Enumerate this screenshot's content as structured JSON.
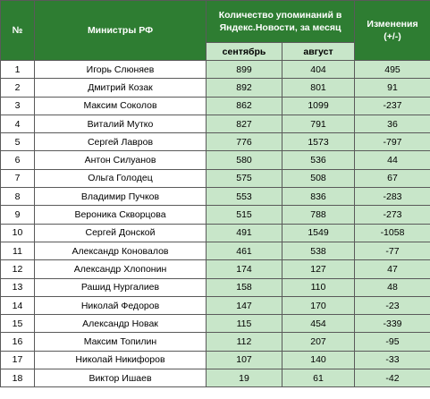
{
  "table": {
    "headers": {
      "num": "№",
      "minister": "Министры РФ",
      "mentions": "Количество упоминаний в Яндекс.Новости, за месяц",
      "september": "сентябрь",
      "august": "август",
      "change": "Изменения (+/-)"
    },
    "rows": [
      {
        "num": "1",
        "name": "Игорь Слюняев",
        "sep": "899",
        "aug": "404",
        "change": "495"
      },
      {
        "num": "2",
        "name": "Дмитрий Козак",
        "sep": "892",
        "aug": "801",
        "change": "91"
      },
      {
        "num": "3",
        "name": "Максим Соколов",
        "sep": "862",
        "aug": "1099",
        "change": "-237"
      },
      {
        "num": "4",
        "name": "Виталий Мутко",
        "sep": "827",
        "aug": "791",
        "change": "36"
      },
      {
        "num": "5",
        "name": "Сергей Лавров",
        "sep": "776",
        "aug": "1573",
        "change": "-797"
      },
      {
        "num": "6",
        "name": "Антон Силуанов",
        "sep": "580",
        "aug": "536",
        "change": "44"
      },
      {
        "num": "7",
        "name": "Ольга Голодец",
        "sep": "575",
        "aug": "508",
        "change": "67"
      },
      {
        "num": "8",
        "name": "Владимир Пучков",
        "sep": "553",
        "aug": "836",
        "change": "-283"
      },
      {
        "num": "9",
        "name": "Вероника Скворцова",
        "sep": "515",
        "aug": "788",
        "change": "-273"
      },
      {
        "num": "10",
        "name": "Сергей Донской",
        "sep": "491",
        "aug": "1549",
        "change": "-1058"
      },
      {
        "num": "11",
        "name": "Александр Коновалов",
        "sep": "461",
        "aug": "538",
        "change": "-77"
      },
      {
        "num": "12",
        "name": "Александр Хлопонин",
        "sep": "174",
        "aug": "127",
        "change": "47"
      },
      {
        "num": "13",
        "name": "Рашид Нургалиев",
        "sep": "158",
        "aug": "110",
        "change": "48"
      },
      {
        "num": "14",
        "name": "Николай Федоров",
        "sep": "147",
        "aug": "170",
        "change": "-23"
      },
      {
        "num": "15",
        "name": "Александр Новак",
        "sep": "115",
        "aug": "454",
        "change": "-339"
      },
      {
        "num": "16",
        "name": "Максим Топилин",
        "sep": "112",
        "aug": "207",
        "change": "-95"
      },
      {
        "num": "17",
        "name": "Николай Никифоров",
        "sep": "107",
        "aug": "140",
        "change": "-33"
      },
      {
        "num": "18",
        "name": "Виктор Ишаев",
        "sep": "19",
        "aug": "61",
        "change": "-42"
      }
    ]
  },
  "colors": {
    "header_bg": "#2e7d32",
    "header_text": "#ffffff",
    "light_green": "#c8e6c9",
    "border": "#5a5a5a"
  }
}
